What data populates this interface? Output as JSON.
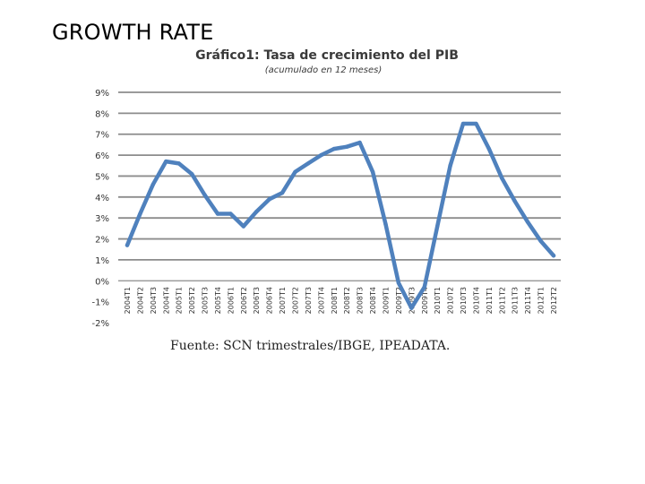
{
  "slide": {
    "title": "GROWTH RATE"
  },
  "chart_data": {
    "type": "line",
    "title_bold": "Gráfico1:",
    "title_rest": " Tasa de crecimiento del PIB",
    "subtitle": "(acumulado en 12 meses)",
    "source": "Fuente: SCN trimestrales/IBGE, IPEADATA.",
    "xlabel": "",
    "ylabel": "",
    "ylim": [
      -2,
      9
    ],
    "ytick_values": [
      9,
      8,
      7,
      6,
      5,
      4,
      3,
      2,
      1,
      0,
      -1,
      -2
    ],
    "ytick_labels": [
      "9%",
      "8%",
      "7%",
      "6%",
      "5%",
      "4%",
      "3%",
      "2%",
      "1%",
      "0%",
      "-1%",
      "-2%"
    ],
    "grid": true,
    "line_color": "#4f81bd",
    "grid_color": "#8c8c8c",
    "categories": [
      "2004T1",
      "2004T2",
      "2004T3",
      "2004T4",
      "2005T1",
      "2005T2",
      "2005T3",
      "2005T4",
      "2006T1",
      "2006T2",
      "2006T3",
      "2006T4",
      "2007T1",
      "2007T2",
      "2007T3",
      "2007T4",
      "2008T1",
      "2008T2",
      "2008T3",
      "2008T4",
      "2009T1",
      "2009T2",
      "2009T3",
      "2009T4",
      "2010T1",
      "2010T2",
      "2010T3",
      "2010T4",
      "2011T1",
      "2011T2",
      "2011T3",
      "2011T4",
      "2012T1",
      "2012T2"
    ],
    "series": [
      {
        "name": "PIB",
        "values": [
          1.7,
          3.2,
          4.6,
          5.7,
          5.6,
          5.1,
          4.1,
          3.2,
          3.2,
          2.6,
          3.3,
          3.9,
          4.2,
          5.2,
          5.6,
          6.0,
          6.3,
          6.4,
          6.6,
          5.2,
          2.7,
          -0.1,
          -1.3,
          -0.3,
          2.6,
          5.5,
          7.5,
          7.5,
          6.3,
          4.9,
          3.8,
          2.8,
          1.9,
          1.2
        ]
      }
    ]
  }
}
